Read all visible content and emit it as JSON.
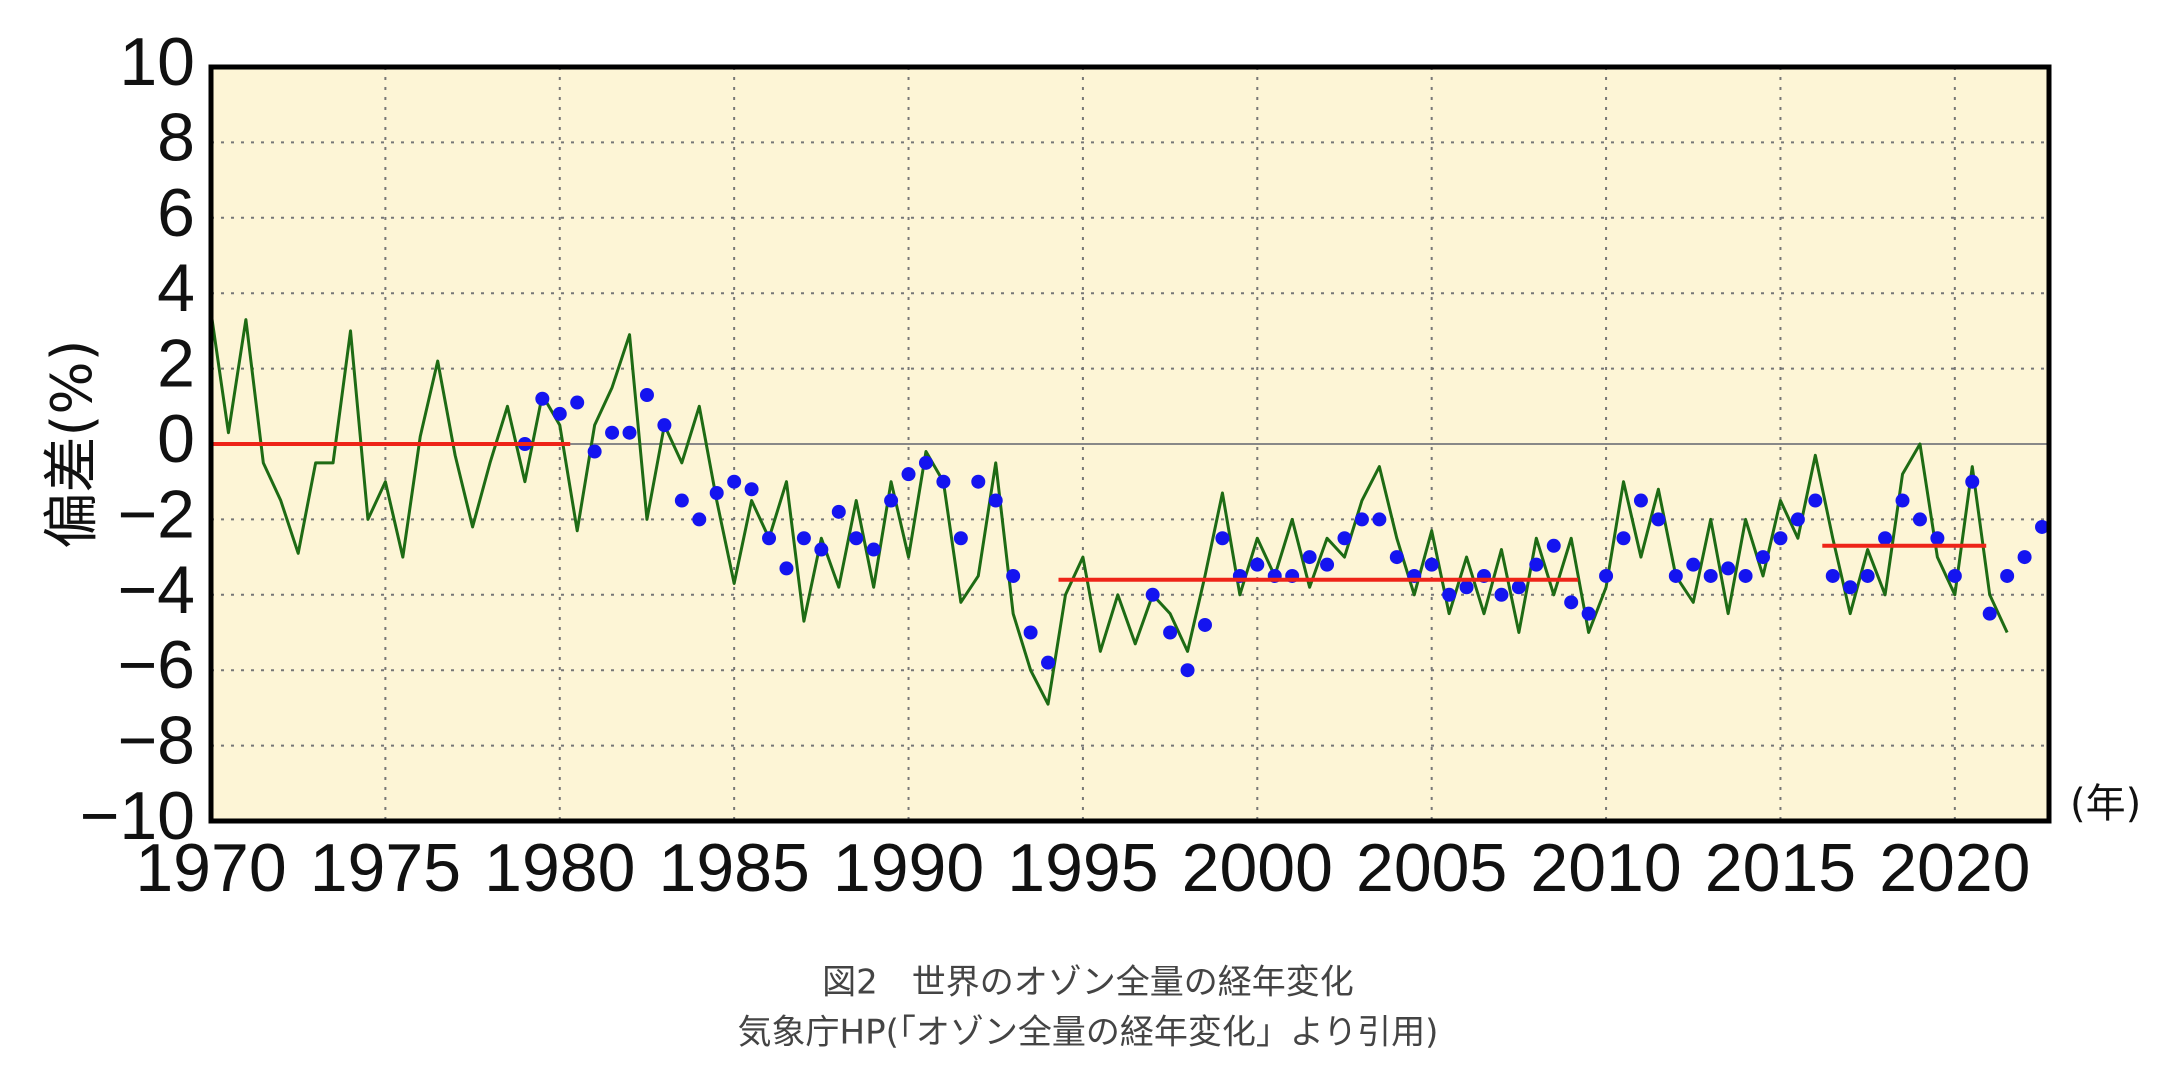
{
  "chart_data": {
    "type": "line",
    "y_label": "偏差(%)",
    "x_unit_label": "(年)",
    "caption_lines": [
      "図2　世界のオゾン全量の経年変化",
      "気象庁HP(「オゾン全量の経年変化」より引用)"
    ],
    "xlim": [
      1970,
      2022.7
    ],
    "xticks": [
      1970,
      1975,
      1980,
      1985,
      1990,
      1995,
      2000,
      2005,
      2010,
      2015,
      2020
    ],
    "ylim": [
      -10,
      10
    ],
    "yticks": [
      {
        "value": -10,
        "label": "−10"
      },
      {
        "value": -8,
        "label": "−8"
      },
      {
        "value": -6,
        "label": "−6"
      },
      {
        "value": -4,
        "label": "−4"
      },
      {
        "value": -2,
        "label": "−2"
      },
      0,
      2,
      4,
      6,
      8,
      10
    ],
    "grid": true,
    "background": "#fdf5d6",
    "series": [
      {
        "mode": "line",
        "color": "#1e6b14",
        "x": [
          1970.0,
          1970.5,
          1971.0,
          1971.5,
          1972.0,
          1972.5,
          1973.0,
          1973.5,
          1974.0,
          1974.5,
          1975.0,
          1975.5,
          1976.0,
          1976.5,
          1977.0,
          1977.5,
          1978.0,
          1978.5,
          1979.0,
          1979.5,
          1980.0,
          1980.5,
          1981.0,
          1981.5,
          1982.0,
          1982.5,
          1983.0,
          1983.5,
          1984.0,
          1984.5,
          1985.0,
          1985.5,
          1986.0,
          1986.5,
          1987.0,
          1987.5,
          1988.0,
          1988.5,
          1989.0,
          1989.5,
          1990.0,
          1990.5,
          1991.0,
          1991.5,
          1992.0,
          1992.5,
          1993.0,
          1993.5,
          1994.0,
          1994.5,
          1995.0,
          1995.5,
          1996.0,
          1996.5,
          1997.0,
          1997.5,
          1998.0,
          1998.5,
          1999.0,
          1999.5,
          2000.0,
          2000.5,
          2001.0,
          2001.5,
          2002.0,
          2002.5,
          2003.0,
          2003.5,
          2004.0,
          2004.5,
          2005.0,
          2005.5,
          2006.0,
          2006.5,
          2007.0,
          2007.5,
          2008.0,
          2008.5,
          2009.0,
          2009.5,
          2010.0,
          2010.5,
          2011.0,
          2011.5,
          2012.0,
          2012.5,
          2013.0,
          2013.5,
          2014.0,
          2014.5,
          2015.0,
          2015.5,
          2016.0,
          2016.5,
          2017.0,
          2017.5,
          2018.0,
          2018.5,
          2019.0,
          2019.5,
          2020.0,
          2020.5,
          2021.0,
          2021.5
        ],
        "values": [
          3.5,
          0.3,
          3.3,
          -0.5,
          -1.5,
          -2.9,
          -0.5,
          -0.5,
          3.0,
          -2.0,
          -1.0,
          -3.0,
          0.2,
          2.2,
          -0.3,
          -2.2,
          -0.5,
          1.0,
          -1.0,
          1.3,
          0.5,
          -2.3,
          0.5,
          1.5,
          2.9,
          -2.0,
          0.5,
          -0.5,
          1.0,
          -1.5,
          -3.7,
          -1.5,
          -2.5,
          -1.0,
          -4.7,
          -2.5,
          -3.8,
          -1.5,
          -3.8,
          -1.0,
          -3.0,
          -0.2,
          -1.0,
          -4.2,
          -3.5,
          -0.5,
          -4.5,
          -6.0,
          -6.9,
          -4.0,
          -3.0,
          -5.5,
          -4.0,
          -5.3,
          -4.0,
          -4.5,
          -5.5,
          -3.5,
          -1.3,
          -4.0,
          -2.5,
          -3.5,
          -2.0,
          -3.8,
          -2.5,
          -3.0,
          -1.5,
          -0.6,
          -2.5,
          -4.0,
          -2.3,
          -4.5,
          -3.0,
          -4.5,
          -2.8,
          -5.0,
          -2.5,
          -4.0,
          -2.5,
          -5.0,
          -3.8,
          -1.0,
          -3.0,
          -1.2,
          -3.5,
          -4.2,
          -2.0,
          -4.5,
          -2.0,
          -3.5,
          -1.5,
          -2.5,
          -0.3,
          -2.5,
          -4.5,
          -2.8,
          -4.0,
          -0.8,
          0.0,
          -3.0,
          -4.0,
          -0.6,
          -4.0,
          -5.0
        ]
      },
      {
        "mode": "markers",
        "color": "#1414f0",
        "x": [
          1979.0,
          1979.5,
          1980.0,
          1980.5,
          1981.0,
          1981.5,
          1982.0,
          1982.5,
          1983.0,
          1983.5,
          1984.0,
          1984.5,
          1985.0,
          1985.5,
          1986.0,
          1986.5,
          1987.0,
          1987.5,
          1988.0,
          1988.5,
          1989.0,
          1989.5,
          1990.0,
          1990.5,
          1991.0,
          1991.5,
          1992.0,
          1992.5,
          1993.0,
          1993.5,
          1994.0,
          1997.0,
          1997.5,
          1998.0,
          1998.5,
          1999.0,
          1999.5,
          2000.0,
          2000.5,
          2001.0,
          2001.5,
          2002.0,
          2002.5,
          2003.0,
          2003.5,
          2004.0,
          2004.5,
          2005.0,
          2005.5,
          2006.0,
          2006.5,
          2007.0,
          2007.5,
          2008.0,
          2008.5,
          2009.0,
          2009.5,
          2010.0,
          2010.5,
          2011.0,
          2011.5,
          2012.0,
          2012.5,
          2013.0,
          2013.5,
          2014.0,
          2014.5,
          2015.0,
          2015.5,
          2016.0,
          2016.5,
          2017.0,
          2017.5,
          2018.0,
          2018.5,
          2019.0,
          2019.5,
          2020.0,
          2020.5,
          2021.0,
          2021.5,
          2022.0,
          2022.5
        ],
        "values": [
          0.0,
          1.2,
          0.8,
          1.1,
          -0.2,
          0.3,
          0.3,
          1.3,
          0.5,
          -1.5,
          -2.0,
          -1.3,
          -1.0,
          -1.2,
          -2.5,
          -3.3,
          -2.5,
          -2.8,
          -1.8,
          -2.5,
          -2.8,
          -1.5,
          -0.8,
          -0.5,
          -1.0,
          -2.5,
          -1.0,
          -1.5,
          -3.5,
          -5.0,
          -5.8,
          -4.0,
          -5.0,
          -6.0,
          -4.8,
          -2.5,
          -3.5,
          -3.2,
          -3.5,
          -3.5,
          -3.0,
          -3.2,
          -2.5,
          -2.0,
          -2.0,
          -3.0,
          -3.5,
          -3.2,
          -4.0,
          -3.8,
          -3.5,
          -4.0,
          -3.8,
          -3.2,
          -2.7,
          -4.2,
          -4.5,
          -3.5,
          -2.5,
          -1.5,
          -2.0,
          -3.5,
          -3.2,
          -3.5,
          -3.3,
          -3.5,
          -3.0,
          -2.5,
          -2.0,
          -1.5,
          -3.5,
          -3.8,
          -3.5,
          -2.5,
          -1.5,
          -2.0,
          -2.5,
          -3.5,
          -1.0,
          -4.5,
          -3.5,
          -3.0,
          -2.2
        ]
      },
      {
        "mode": "line",
        "color": "#ee2418",
        "x": [
          1970,
          1980.3
        ],
        "values": [
          0,
          0
        ]
      },
      {
        "mode": "line",
        "color": "#ee2418",
        "x": [
          1994.3,
          2009.2
        ],
        "values": [
          -3.6,
          -3.6
        ]
      },
      {
        "mode": "line",
        "color": "#ee2418",
        "x": [
          2016.2,
          2020.9
        ],
        "values": [
          -2.7,
          -2.7
        ]
      }
    ]
  }
}
